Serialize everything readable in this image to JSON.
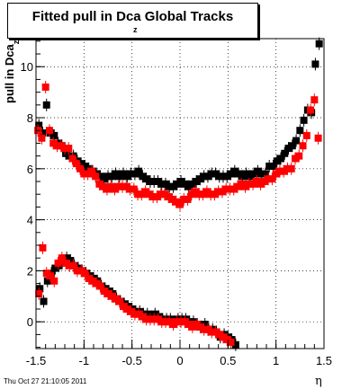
{
  "footer_timestamp": "Thu Oct 27 21:10:05 2011",
  "chart_data": {
    "type": "scatter",
    "title": "Fitted pull in Dca",
    "title_subscript": "z",
    "title_suffix": " Global Tracks",
    "xlabel": "η",
    "ylabel": "pull in Dca",
    "ylabel_subscript": "z",
    "xlim": [
      -1.5,
      1.5
    ],
    "ylim": [
      -1.05,
      11.1
    ],
    "xticks": [
      -1.5,
      -1,
      -0.5,
      0,
      0.5,
      1,
      1.5
    ],
    "xtick_labels": [
      "-1.5",
      "-1",
      "-0.5",
      "0",
      "0.5",
      "1",
      "1.5"
    ],
    "yticks": [
      0,
      2,
      4,
      6,
      8,
      10
    ],
    "ytick_labels": [
      "0",
      "2",
      "4",
      "6",
      "8",
      "10"
    ],
    "series": [
      {
        "color": "#000000",
        "marker": "square",
        "points": [
          [
            -1.47,
            7.7
          ],
          [
            -1.43,
            7.4
          ],
          [
            -1.39,
            8.5
          ],
          [
            -1.35,
            7.4
          ],
          [
            -1.31,
            7.3
          ],
          [
            -1.27,
            7.0
          ],
          [
            -1.23,
            6.9
          ],
          [
            -1.19,
            6.6
          ],
          [
            -1.15,
            6.5
          ],
          [
            -1.11,
            6.5
          ],
          [
            -1.07,
            6.3
          ],
          [
            -1.03,
            6.2
          ],
          [
            -0.99,
            6.1
          ],
          [
            -0.95,
            6.0
          ],
          [
            -0.91,
            5.9
          ],
          [
            -0.87,
            5.8
          ],
          [
            -0.83,
            5.7
          ],
          [
            -0.79,
            5.6
          ],
          [
            -0.75,
            5.7
          ],
          [
            -0.71,
            5.7
          ],
          [
            -0.67,
            5.8
          ],
          [
            -0.63,
            5.7
          ],
          [
            -0.59,
            5.8
          ],
          [
            -0.55,
            5.7
          ],
          [
            -0.51,
            5.8
          ],
          [
            -0.47,
            5.8
          ],
          [
            -0.43,
            5.9
          ],
          [
            -0.39,
            5.7
          ],
          [
            -0.35,
            5.6
          ],
          [
            -0.31,
            5.5
          ],
          [
            -0.27,
            5.5
          ],
          [
            -0.23,
            5.5
          ],
          [
            -0.19,
            5.4
          ],
          [
            -0.15,
            5.4
          ],
          [
            -0.11,
            5.3
          ],
          [
            -0.07,
            5.3
          ],
          [
            -0.03,
            5.4
          ],
          [
            0.01,
            5.5
          ],
          [
            0.05,
            5.4
          ],
          [
            0.09,
            5.3
          ],
          [
            0.13,
            5.4
          ],
          [
            0.17,
            5.5
          ],
          [
            0.21,
            5.6
          ],
          [
            0.25,
            5.7
          ],
          [
            0.29,
            5.7
          ],
          [
            0.33,
            5.8
          ],
          [
            0.37,
            5.8
          ],
          [
            0.41,
            5.7
          ],
          [
            0.45,
            5.7
          ],
          [
            0.49,
            5.7
          ],
          [
            0.53,
            5.8
          ],
          [
            0.57,
            5.9
          ],
          [
            0.61,
            5.8
          ],
          [
            0.65,
            5.7
          ],
          [
            0.69,
            5.8
          ],
          [
            0.73,
            5.7
          ],
          [
            0.77,
            5.8
          ],
          [
            0.81,
            5.9
          ],
          [
            0.85,
            5.8
          ],
          [
            0.89,
            5.8
          ],
          [
            0.93,
            6.1
          ],
          [
            0.97,
            6.1
          ],
          [
            1.01,
            6.3
          ],
          [
            1.05,
            6.4
          ],
          [
            1.09,
            6.6
          ],
          [
            1.13,
            6.8
          ],
          [
            1.17,
            6.9
          ],
          [
            1.21,
            7.1
          ],
          [
            1.25,
            7.5
          ],
          [
            1.29,
            7.9
          ],
          [
            1.33,
            8.3
          ],
          [
            1.37,
            8.2
          ],
          [
            1.41,
            10.1
          ],
          [
            1.45,
            10.9
          ],
          [
            -1.46,
            1.3
          ],
          [
            -1.42,
            0.8
          ],
          [
            -1.38,
            1.6
          ],
          [
            -1.34,
            1.9
          ],
          [
            -1.3,
            2.1
          ],
          [
            -1.26,
            2.2
          ],
          [
            -1.22,
            2.4
          ],
          [
            -1.18,
            2.5
          ],
          [
            -1.14,
            2.4
          ],
          [
            -1.1,
            2.2
          ],
          [
            -1.06,
            2.1
          ],
          [
            -1.02,
            2.0
          ],
          [
            -0.98,
            1.9
          ],
          [
            -0.94,
            1.8
          ],
          [
            -0.9,
            1.7
          ],
          [
            -0.86,
            1.6
          ],
          [
            -0.82,
            1.4
          ],
          [
            -0.78,
            1.3
          ],
          [
            -0.74,
            1.2
          ],
          [
            -0.7,
            1.1
          ],
          [
            -0.66,
            0.9
          ],
          [
            -0.62,
            0.8
          ],
          [
            -0.58,
            0.7
          ],
          [
            -0.54,
            0.6
          ],
          [
            -0.5,
            0.5
          ],
          [
            -0.46,
            0.4
          ],
          [
            -0.42,
            0.4
          ],
          [
            -0.38,
            0.3
          ],
          [
            -0.34,
            0.3
          ],
          [
            -0.3,
            0.2
          ],
          [
            -0.26,
            0.3
          ],
          [
            -0.22,
            0.2
          ],
          [
            -0.18,
            0.1
          ],
          [
            -0.14,
            0.1
          ],
          [
            -0.1,
            0.1
          ],
          [
            -0.06,
            0.0
          ],
          [
            -0.02,
            0.1
          ],
          [
            0.02,
            0.1
          ],
          [
            0.06,
            0.1
          ],
          [
            0.1,
            0.0
          ],
          [
            0.14,
            0.0
          ],
          [
            0.18,
            -0.1
          ],
          [
            0.22,
            -0.2
          ],
          [
            0.26,
            -0.1
          ],
          [
            0.3,
            -0.3
          ],
          [
            0.34,
            -0.3
          ],
          [
            0.38,
            -0.4
          ],
          [
            0.42,
            -0.6
          ],
          [
            0.46,
            -0.5
          ],
          [
            0.5,
            -0.6
          ],
          [
            0.54,
            -0.7
          ],
          [
            0.58,
            -0.9
          ]
        ]
      },
      {
        "color": "#ff0000",
        "marker": "square",
        "points": [
          [
            -1.48,
            7.5
          ],
          [
            -1.44,
            7.2
          ],
          [
            -1.4,
            9.2
          ],
          [
            -1.36,
            7.5
          ],
          [
            -1.32,
            7.0
          ],
          [
            -1.28,
            6.9
          ],
          [
            -1.24,
            6.9
          ],
          [
            -1.2,
            6.8
          ],
          [
            -1.16,
            6.8
          ],
          [
            -1.12,
            6.4
          ],
          [
            -1.08,
            6.2
          ],
          [
            -1.04,
            6.0
          ],
          [
            -1.0,
            5.8
          ],
          [
            -0.96,
            5.8
          ],
          [
            -0.92,
            5.9
          ],
          [
            -0.88,
            5.7
          ],
          [
            -0.84,
            5.4
          ],
          [
            -0.8,
            5.3
          ],
          [
            -0.76,
            5.2
          ],
          [
            -0.72,
            5.3
          ],
          [
            -0.68,
            5.2
          ],
          [
            -0.64,
            5.3
          ],
          [
            -0.6,
            5.3
          ],
          [
            -0.56,
            5.3
          ],
          [
            -0.52,
            5.2
          ],
          [
            -0.48,
            5.2
          ],
          [
            -0.44,
            5.0
          ],
          [
            -0.4,
            5.0
          ],
          [
            -0.36,
            5.1
          ],
          [
            -0.32,
            5.0
          ],
          [
            -0.28,
            4.9
          ],
          [
            -0.24,
            4.9
          ],
          [
            -0.2,
            5.0
          ],
          [
            -0.16,
            5.0
          ],
          [
            -0.12,
            4.9
          ],
          [
            -0.08,
            4.8
          ],
          [
            -0.04,
            4.7
          ],
          [
            0.0,
            4.6
          ],
          [
            0.04,
            4.8
          ],
          [
            0.08,
            4.8
          ],
          [
            0.12,
            5.0
          ],
          [
            0.16,
            5.1
          ],
          [
            0.2,
            5.0
          ],
          [
            0.24,
            5.0
          ],
          [
            0.28,
            5.1
          ],
          [
            0.32,
            5.0
          ],
          [
            0.36,
            5.0
          ],
          [
            0.4,
            5.1
          ],
          [
            0.44,
            5.1
          ],
          [
            0.48,
            5.2
          ],
          [
            0.52,
            5.2
          ],
          [
            0.56,
            5.2
          ],
          [
            0.6,
            5.3
          ],
          [
            0.64,
            5.4
          ],
          [
            0.68,
            5.3
          ],
          [
            0.72,
            5.4
          ],
          [
            0.76,
            5.4
          ],
          [
            0.8,
            5.5
          ],
          [
            0.84,
            5.4
          ],
          [
            0.88,
            5.5
          ],
          [
            0.92,
            5.6
          ],
          [
            0.96,
            5.6
          ],
          [
            1.0,
            5.8
          ],
          [
            1.04,
            5.9
          ],
          [
            1.08,
            5.9
          ],
          [
            1.12,
            6.0
          ],
          [
            1.16,
            6.0
          ],
          [
            1.2,
            6.4
          ],
          [
            1.24,
            6.5
          ],
          [
            1.28,
            6.9
          ],
          [
            1.32,
            7.3
          ],
          [
            1.36,
            8.3
          ],
          [
            1.4,
            8.7
          ],
          [
            1.44,
            7.2
          ],
          [
            -1.47,
            1.1
          ],
          [
            -1.43,
            2.9
          ],
          [
            -1.39,
            1.9
          ],
          [
            -1.35,
            1.8
          ],
          [
            -1.31,
            1.6
          ],
          [
            -1.27,
            2.3
          ],
          [
            -1.23,
            2.5
          ],
          [
            -1.19,
            2.3
          ],
          [
            -1.15,
            2.2
          ],
          [
            -1.11,
            2.2
          ],
          [
            -1.07,
            2.0
          ],
          [
            -1.03,
            2.0
          ],
          [
            -0.99,
            1.9
          ],
          [
            -0.95,
            1.7
          ],
          [
            -0.91,
            1.6
          ],
          [
            -0.87,
            1.5
          ],
          [
            -0.83,
            1.4
          ],
          [
            -0.79,
            1.2
          ],
          [
            -0.75,
            1.1
          ],
          [
            -0.71,
            1.0
          ],
          [
            -0.67,
            0.9
          ],
          [
            -0.63,
            0.8
          ],
          [
            -0.59,
            0.6
          ],
          [
            -0.55,
            0.5
          ],
          [
            -0.51,
            0.4
          ],
          [
            -0.47,
            0.3
          ],
          [
            -0.43,
            0.3
          ],
          [
            -0.39,
            0.2
          ],
          [
            -0.35,
            0.1
          ],
          [
            -0.31,
            0.1
          ],
          [
            -0.27,
            0.1
          ],
          [
            -0.23,
            0.1
          ],
          [
            -0.19,
            0.0
          ],
          [
            -0.15,
            0.0
          ],
          [
            -0.11,
            0.0
          ],
          [
            -0.07,
            -0.1
          ],
          [
            -0.03,
            0.0
          ],
          [
            0.01,
            0.0
          ],
          [
            0.05,
            0.0
          ],
          [
            0.09,
            -0.1
          ],
          [
            0.13,
            -0.2
          ],
          [
            0.17,
            -0.1
          ],
          [
            0.21,
            -0.2
          ],
          [
            0.25,
            -0.3
          ],
          [
            0.29,
            -0.3
          ],
          [
            0.33,
            -0.4
          ],
          [
            0.37,
            -0.4
          ],
          [
            0.41,
            -0.5
          ],
          [
            0.45,
            -0.6
          ],
          [
            0.49,
            -0.7
          ],
          [
            0.53,
            -0.8
          ]
        ]
      }
    ],
    "grid": true
  }
}
